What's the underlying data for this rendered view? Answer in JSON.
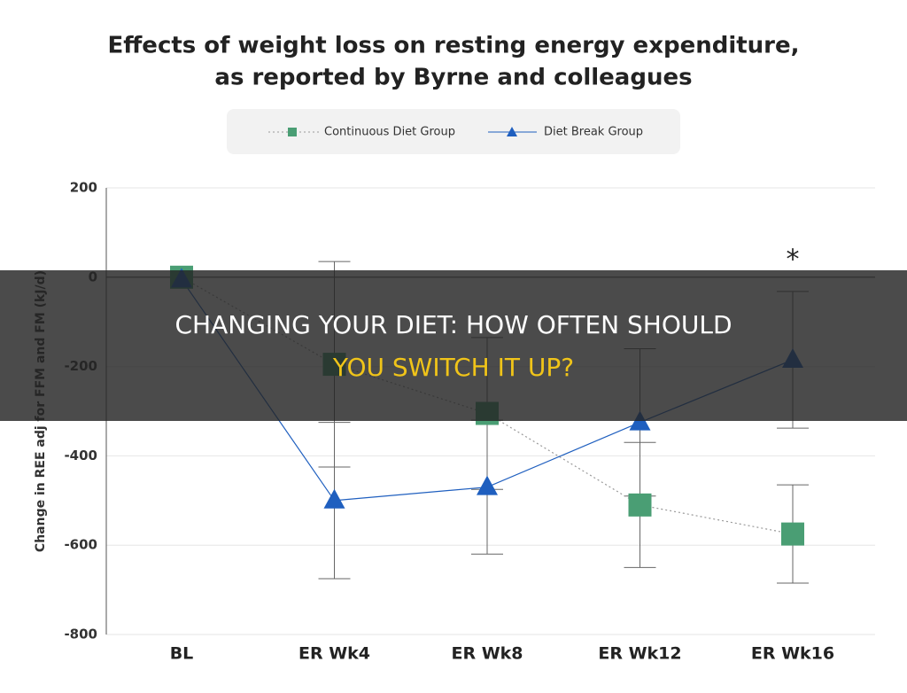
{
  "chart_data": {
    "type": "line",
    "title": [
      "Effects of weight loss on resting energy expenditure,",
      "as reported by Byrne and colleagues"
    ],
    "y_label": "Change in REE adj for FFM and FM (kJ/d)",
    "categories": [
      "BL",
      "ER Wk4",
      "ER Wk8",
      "ER Wk12",
      "ER Wk16"
    ],
    "series": [
      {
        "name": "Continuous Diet Group",
        "color": "#4a9e74",
        "marker": "square",
        "values": [
          0,
          -195,
          -305,
          -510,
          -575
        ],
        "errors": [
          0,
          230,
          170,
          140,
          110
        ]
      },
      {
        "name": "Diet Break Group",
        "color": "#1f5fbf",
        "marker": "triangle",
        "values": [
          -5,
          -500,
          -470,
          -325,
          -185
        ],
        "errors": [
          0,
          175,
          150,
          165,
          153
        ]
      }
    ],
    "annotation": "*",
    "ylim": [
      -800,
      200
    ],
    "yticks": [
      -800,
      -600,
      -400,
      -200,
      0,
      200
    ],
    "grid": true,
    "overlay": [
      "CHANGING YOUR DIET: HOW OFTEN SHOULD",
      "YOU SWITCH IT UP?"
    ]
  }
}
